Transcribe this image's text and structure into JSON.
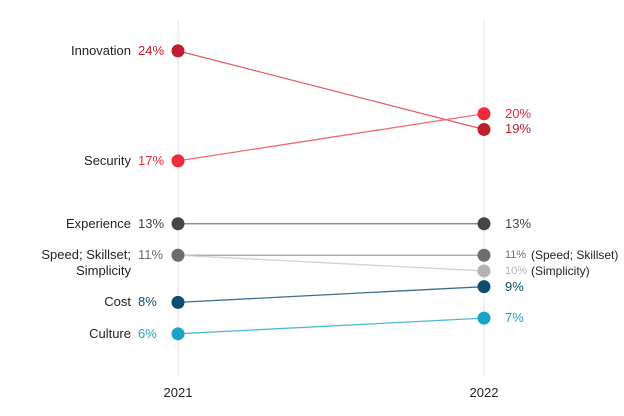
{
  "chart_data": {
    "type": "slope",
    "categories": [
      "2021",
      "2022"
    ],
    "ylim": [
      3,
      26
    ],
    "series": [
      {
        "name": "Innovation",
        "color": "#be1e2d",
        "line_color": "#e35a66",
        "values": [
          24,
          19
        ],
        "value_labels": [
          "24%",
          "19%"
        ]
      },
      {
        "name": "Security",
        "color": "#ee2b3b",
        "line_color": "#f06a74",
        "values": [
          17,
          20
        ],
        "value_labels": [
          "17%",
          "20%"
        ]
      },
      {
        "name": "Experience",
        "color": "#454545",
        "line_color": "#7a7a7a",
        "values": [
          13,
          13
        ],
        "value_labels": [
          "13%",
          "13%"
        ]
      },
      {
        "name": "Speed; Skillset; Simplicity",
        "end_label": "(Speed; Skillset)",
        "color": "#6d6d6d",
        "line_color": "#a0a0a0",
        "values": [
          11,
          11
        ],
        "value_labels": [
          "11%",
          "11%"
        ]
      },
      {
        "name": null,
        "end_label": "(Simplicity)",
        "color": "#b3b3b3",
        "line_color": "#d2d2d2",
        "values": [
          11,
          10
        ],
        "value_labels": [
          null,
          "10%"
        ]
      },
      {
        "name": "Cost",
        "color": "#0e4d6e",
        "line_color": "#3d6f8c",
        "values": [
          8,
          9
        ],
        "value_labels": [
          "8%",
          "9%"
        ]
      },
      {
        "name": "Culture",
        "color": "#1aa3c8",
        "line_color": "#4db8d6",
        "values": [
          6,
          7
        ],
        "value_labels": [
          "6%",
          "7%"
        ]
      }
    ]
  }
}
